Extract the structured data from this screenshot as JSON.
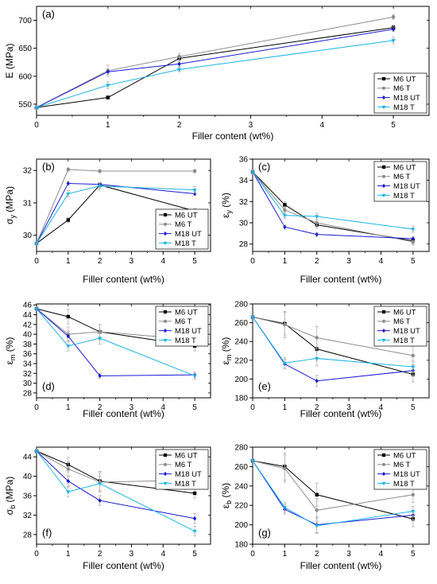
{
  "colors": {
    "M6 UT": "#000000",
    "M6 T": "#8c8c8c",
    "M18 UT": "#1a1ad6",
    "M18 T": "#1ab4e6"
  },
  "chart_data": [
    {
      "id": "a",
      "type": "line",
      "panel_label": "(a)",
      "legend_position": "bottom-right",
      "xlabel": "Filler content (wt%)",
      "ylabel": "E (MPa)",
      "xlim": [
        0,
        5.5
      ],
      "ylim": [
        530,
        725
      ],
      "xticks": [
        0,
        1,
        2,
        3,
        4,
        5
      ],
      "yticks": [
        550,
        600,
        650,
        700
      ],
      "x": [
        0,
        1,
        2,
        5
      ],
      "series": [
        {
          "name": "M6 UT",
          "marker": "square",
          "values": [
            544,
            562,
            632,
            687
          ],
          "errors": [
            3,
            3,
            5,
            4
          ]
        },
        {
          "name": "M6 T",
          "marker": "circle",
          "values": [
            544,
            610,
            635,
            706
          ],
          "errors": [
            3,
            10,
            6,
            4
          ]
        },
        {
          "name": "M18 UT",
          "marker": "diamond",
          "values": [
            544,
            608,
            622,
            684
          ],
          "errors": [
            3,
            5,
            5,
            4
          ]
        },
        {
          "name": "M18 T",
          "marker": "tri-down",
          "values": [
            544,
            584,
            612,
            664
          ],
          "errors": [
            3,
            6,
            4,
            6
          ]
        }
      ]
    },
    {
      "id": "b",
      "type": "line",
      "panel_label": "(b)",
      "legend_position": "bottom-right",
      "xlabel": "Filler content (wt%)",
      "ylabel": "σy (MPa)",
      "ylabel_main": "σ",
      "ylabel_sub": "y",
      "ylabel_unit": " (MPa)",
      "xlim": [
        0,
        5.5
      ],
      "ylim": [
        29.5,
        32.35
      ],
      "xticks": [
        0,
        1,
        2,
        3,
        4,
        5
      ],
      "yticks": [
        30,
        31,
        32
      ],
      "x": [
        0,
        1,
        2,
        5
      ],
      "series": [
        {
          "name": "M6 UT",
          "marker": "square",
          "values": [
            29.75,
            30.47,
            31.55,
            30.75
          ],
          "errors": [
            0.05,
            0.08,
            0.08,
            0.08
          ]
        },
        {
          "name": "M6 T",
          "marker": "circle",
          "values": [
            29.75,
            32.03,
            31.98,
            31.98
          ],
          "errors": [
            0.05,
            0.05,
            0.05,
            0.05
          ]
        },
        {
          "name": "M18 UT",
          "marker": "diamond",
          "values": [
            29.75,
            31.6,
            31.57,
            31.28
          ],
          "errors": [
            0.05,
            0.06,
            0.06,
            0.06
          ]
        },
        {
          "name": "M18 T",
          "marker": "tri-down",
          "values": [
            29.75,
            31.28,
            31.52,
            31.4
          ],
          "errors": [
            0.05,
            0.1,
            0.1,
            0.1
          ]
        }
      ]
    },
    {
      "id": "c",
      "type": "line",
      "panel_label": "(c)",
      "legend_position": "top-right",
      "xlabel": "Filler content (wt%)",
      "ylabel": "εy (%)",
      "ylabel_main": "ε",
      "ylabel_sub": "y",
      "ylabel_unit": " (%)",
      "xlim": [
        0,
        5.5
      ],
      "ylim": [
        27.3,
        36
      ],
      "xticks": [
        0,
        1,
        2,
        3,
        4,
        5
      ],
      "yticks": [
        28,
        30,
        32,
        34,
        36
      ],
      "x": [
        0,
        1,
        2,
        5
      ],
      "series": [
        {
          "name": "M6 UT",
          "marker": "square",
          "values": [
            34.8,
            31.7,
            29.8,
            28.3
          ],
          "errors": [
            0.2,
            0.3,
            0.3,
            0.3
          ]
        },
        {
          "name": "M6 T",
          "marker": "circle",
          "values": [
            34.8,
            31.2,
            30.0,
            28.2
          ],
          "errors": [
            0.2,
            0.3,
            0.3,
            0.3
          ]
        },
        {
          "name": "M18 UT",
          "marker": "diamond",
          "values": [
            34.8,
            29.6,
            28.9,
            28.5
          ],
          "errors": [
            0.2,
            0.2,
            0.2,
            0.2
          ]
        },
        {
          "name": "M18 T",
          "marker": "tri-down",
          "values": [
            34.8,
            30.7,
            30.6,
            29.4
          ],
          "errors": [
            0.2,
            0.3,
            0.3,
            0.3
          ]
        }
      ]
    },
    {
      "id": "d",
      "type": "line",
      "panel_label": "(d)",
      "legend_position": "top-right",
      "xlabel": "Filler content (wt%)",
      "ylabel": "εm (%)",
      "ylabel_main": "ε",
      "ylabel_sub": "m",
      "ylabel_unit": " (%)",
      "xlim": [
        0,
        5.5
      ],
      "ylim": [
        27,
        46.2
      ],
      "xticks": [
        0,
        1,
        2,
        3,
        4,
        5
      ],
      "xticklabels": [
        "0",
        "1",
        "2",
        "3",
        "4",
        "5"
      ],
      "yticks": [
        28,
        30,
        32,
        34,
        36,
        38,
        40,
        42,
        44,
        46
      ],
      "x": [
        0,
        1,
        2,
        5
      ],
      "series": [
        {
          "name": "M6 UT",
          "marker": "square",
          "values": [
            45.2,
            43.6,
            40.5,
            37.6
          ],
          "errors": [
            0.4,
            1.5,
            1.5,
            1.0
          ]
        },
        {
          "name": "M6 T",
          "marker": "circle",
          "values": [
            45.2,
            40.0,
            40.5,
            38.9
          ],
          "errors": [
            0.4,
            1.5,
            1.5,
            1.0
          ]
        },
        {
          "name": "M18 UT",
          "marker": "diamond",
          "values": [
            45.2,
            39.6,
            31.5,
            31.7
          ],
          "errors": [
            0.4,
            1.0,
            0.5,
            0.5
          ]
        },
        {
          "name": "M18 T",
          "marker": "tri-down",
          "values": [
            45.2,
            37.6,
            39.2,
            31.5
          ],
          "errors": [
            0.4,
            1.0,
            1.2,
            0.7
          ]
        }
      ]
    },
    {
      "id": "e",
      "type": "line",
      "panel_label": "(e)",
      "legend_position": "top-right",
      "xlabel": "Filler content (wt%)",
      "ylabel": "εm (%)",
      "ylabel_main": "ε",
      "ylabel_sub": "m",
      "ylabel_unit": " (%)",
      "xlim": [
        0,
        5.5
      ],
      "ylim": [
        180,
        280
      ],
      "xticks": [
        0,
        1,
        2,
        3,
        4,
        5
      ],
      "xticklabels": [
        "0",
        "1",
        "2",
        "3",
        "4",
        "5"
      ],
      "yticks": [
        180,
        200,
        220,
        240,
        260,
        280
      ],
      "x": [
        0,
        1,
        2,
        5
      ],
      "series": [
        {
          "name": "M6 UT",
          "marker": "square",
          "values": [
            266,
            259,
            232,
            205
          ],
          "errors": [
            2,
            12,
            12,
            8
          ]
        },
        {
          "name": "M6 T",
          "marker": "circle",
          "values": [
            266,
            258,
            244,
            225
          ],
          "errors": [
            2,
            14,
            12,
            10
          ]
        },
        {
          "name": "M18 UT",
          "marker": "diamond",
          "values": [
            266,
            216,
            198,
            209
          ],
          "errors": [
            2,
            5,
            6,
            5
          ]
        },
        {
          "name": "M18 T",
          "marker": "tri-down",
          "values": [
            266,
            217,
            222,
            213
          ],
          "errors": [
            2,
            6,
            8,
            6
          ]
        }
      ]
    },
    {
      "id": "f",
      "type": "line",
      "panel_label": "(f)",
      "legend_position": "top-right",
      "xlabel": "Filler content (wt%)",
      "ylabel": "σb (MPa)",
      "ylabel_main": "σ",
      "ylabel_sub": "b",
      "ylabel_unit": " (MPa)",
      "xlim": [
        0,
        5.5
      ],
      "ylim": [
        26,
        46
      ],
      "xticks": [
        0,
        1,
        2,
        3,
        4,
        5
      ],
      "xticklabels": [
        "0",
        "1",
        "2",
        "3",
        "4",
        "5"
      ],
      "yticks": [
        28,
        32,
        36,
        40,
        44
      ],
      "x": [
        0,
        1,
        2,
        5
      ],
      "series": [
        {
          "name": "M6 UT",
          "marker": "square",
          "values": [
            45.2,
            42.4,
            39.0,
            36.5
          ],
          "errors": [
            0.4,
            1.5,
            2.0,
            1.0
          ]
        },
        {
          "name": "M6 T",
          "marker": "circle",
          "values": [
            45.2,
            41.5,
            38.8,
            39.2
          ],
          "errors": [
            0.4,
            1.5,
            2.0,
            1.0
          ]
        },
        {
          "name": "M18 UT",
          "marker": "diamond",
          "values": [
            45.2,
            39.0,
            35.0,
            31.3
          ],
          "errors": [
            0.4,
            1.0,
            1.0,
            1.0
          ]
        },
        {
          "name": "M18 T",
          "marker": "tri-down",
          "values": [
            45.2,
            36.8,
            38.5,
            28.7
          ],
          "errors": [
            0.4,
            1.0,
            1.5,
            1.0
          ]
        }
      ]
    },
    {
      "id": "g",
      "type": "line",
      "panel_label": "(g)",
      "legend_position": "top-right",
      "xlabel": "Filler content (wt%)",
      "ylabel": "εb (%)",
      "ylabel_main": "ε",
      "ylabel_sub": "b",
      "ylabel_unit": " (%)",
      "xlim": [
        0,
        5.5
      ],
      "ylim": [
        180,
        280
      ],
      "xticks": [
        0,
        1,
        2,
        3,
        4,
        5
      ],
      "xticklabels": [
        "0",
        "1",
        "2",
        "3",
        "4",
        "5"
      ],
      "yticks": [
        180,
        200,
        220,
        240,
        260,
        280
      ],
      "x": [
        0,
        1,
        2,
        5
      ],
      "series": [
        {
          "name": "M6 UT",
          "marker": "square",
          "values": [
            266,
            260,
            231,
            206
          ],
          "errors": [
            2,
            14,
            12,
            8
          ]
        },
        {
          "name": "M6 T",
          "marker": "circle",
          "values": [
            266,
            258,
            215,
            231
          ],
          "errors": [
            2,
            14,
            12,
            8
          ]
        },
        {
          "name": "M18 UT",
          "marker": "diamond",
          "values": [
            266,
            216,
            200,
            210
          ],
          "errors": [
            2,
            5,
            8,
            5
          ]
        },
        {
          "name": "M18 T",
          "marker": "tri-down",
          "values": [
            266,
            218,
            199,
            214
          ],
          "errors": [
            2,
            5,
            8,
            5
          ]
        }
      ]
    }
  ]
}
